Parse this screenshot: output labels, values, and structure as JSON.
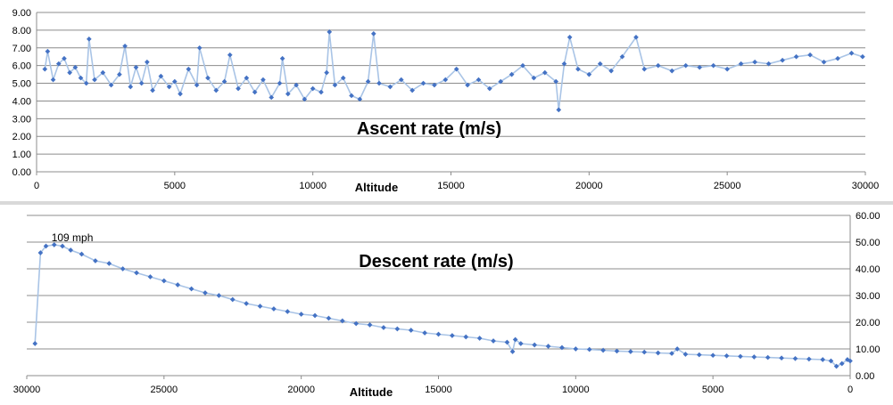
{
  "chart_data": [
    {
      "type": "line",
      "title": "Ascent rate (m/s)",
      "xlabel": "Altitude",
      "ylabel": "",
      "xlim": [
        0,
        30000
      ],
      "ylim": [
        0,
        9
      ],
      "x_ticks": [
        0,
        5000,
        10000,
        15000,
        20000,
        25000,
        30000
      ],
      "y_ticks": [
        "0.00",
        "1.00",
        "2.00",
        "3.00",
        "4.00",
        "5.00",
        "6.00",
        "7.00",
        "8.00",
        "9.00"
      ],
      "y_axis_side": "left",
      "grid": true,
      "series": [
        {
          "name": "Ascent rate",
          "color": "#4472c4",
          "line_color": "#a9c4e6",
          "points": [
            [
              300,
              5.8
            ],
            [
              400,
              6.8
            ],
            [
              600,
              5.2
            ],
            [
              800,
              6.1
            ],
            [
              1000,
              6.4
            ],
            [
              1200,
              5.6
            ],
            [
              1400,
              5.9
            ],
            [
              1600,
              5.3
            ],
            [
              1800,
              5.0
            ],
            [
              1900,
              7.5
            ],
            [
              2100,
              5.2
            ],
            [
              2400,
              5.6
            ],
            [
              2700,
              4.9
            ],
            [
              3000,
              5.5
            ],
            [
              3200,
              7.1
            ],
            [
              3400,
              4.8
            ],
            [
              3600,
              5.9
            ],
            [
              3800,
              5.0
            ],
            [
              4000,
              6.2
            ],
            [
              4200,
              4.6
            ],
            [
              4500,
              5.4
            ],
            [
              4800,
              4.8
            ],
            [
              5000,
              5.1
            ],
            [
              5200,
              4.4
            ],
            [
              5500,
              5.8
            ],
            [
              5800,
              4.9
            ],
            [
              5900,
              7.0
            ],
            [
              6200,
              5.3
            ],
            [
              6500,
              4.6
            ],
            [
              6800,
              5.1
            ],
            [
              7000,
              6.6
            ],
            [
              7300,
              4.7
            ],
            [
              7600,
              5.3
            ],
            [
              7900,
              4.5
            ],
            [
              8200,
              5.2
            ],
            [
              8500,
              4.2
            ],
            [
              8800,
              5.0
            ],
            [
              8900,
              6.4
            ],
            [
              9100,
              4.4
            ],
            [
              9400,
              4.9
            ],
            [
              9700,
              4.1
            ],
            [
              10000,
              4.7
            ],
            [
              10300,
              4.5
            ],
            [
              10500,
              5.6
            ],
            [
              10600,
              7.9
            ],
            [
              10800,
              4.9
            ],
            [
              11100,
              5.3
            ],
            [
              11400,
              4.3
            ],
            [
              11700,
              4.1
            ],
            [
              12000,
              5.1
            ],
            [
              12200,
              7.8
            ],
            [
              12400,
              5.0
            ],
            [
              12800,
              4.8
            ],
            [
              13200,
              5.2
            ],
            [
              13600,
              4.6
            ],
            [
              14000,
              5.0
            ],
            [
              14400,
              4.9
            ],
            [
              14800,
              5.2
            ],
            [
              15200,
              5.8
            ],
            [
              15600,
              4.9
            ],
            [
              16000,
              5.2
            ],
            [
              16400,
              4.7
            ],
            [
              16800,
              5.1
            ],
            [
              17200,
              5.5
            ],
            [
              17600,
              6.0
            ],
            [
              18000,
              5.3
            ],
            [
              18400,
              5.6
            ],
            [
              18800,
              5.1
            ],
            [
              18900,
              3.5
            ],
            [
              19100,
              6.1
            ],
            [
              19300,
              7.6
            ],
            [
              19600,
              5.8
            ],
            [
              20000,
              5.5
            ],
            [
              20400,
              6.1
            ],
            [
              20800,
              5.7
            ],
            [
              21200,
              6.5
            ],
            [
              21700,
              7.6
            ],
            [
              22000,
              5.8
            ],
            [
              22500,
              6.0
            ],
            [
              23000,
              5.7
            ],
            [
              23500,
              6.0
            ],
            [
              24000,
              5.9
            ],
            [
              24500,
              6.0
            ],
            [
              25000,
              5.8
            ],
            [
              25500,
              6.1
            ],
            [
              26000,
              6.2
            ],
            [
              26500,
              6.1
            ],
            [
              27000,
              6.3
            ],
            [
              27500,
              6.5
            ],
            [
              28000,
              6.6
            ],
            [
              28500,
              6.2
            ],
            [
              29000,
              6.4
            ],
            [
              29500,
              6.7
            ],
            [
              29900,
              6.5
            ]
          ]
        }
      ]
    },
    {
      "type": "line",
      "title": "Descent rate (m/s)",
      "xlabel": "Altitude",
      "ylabel": "",
      "xlim": [
        30000,
        0
      ],
      "ylim": [
        0,
        60
      ],
      "x_ticks": [
        30000,
        25000,
        20000,
        15000,
        10000,
        5000,
        0
      ],
      "y_ticks": [
        "0.00",
        "10.00",
        "20.00",
        "30.00",
        "40.00",
        "50.00",
        "60.00"
      ],
      "y_axis_side": "right",
      "grid": true,
      "annotations": [
        {
          "text": "109 mph",
          "x": 29100,
          "y": 49
        }
      ],
      "series": [
        {
          "name": "Descent rate",
          "color": "#4472c4",
          "line_color": "#a9c4e6",
          "points": [
            [
              29700,
              12.0
            ],
            [
              29500,
              46.0
            ],
            [
              29300,
              48.5
            ],
            [
              29000,
              49.0
            ],
            [
              28700,
              48.5
            ],
            [
              28400,
              47.0
            ],
            [
              28000,
              45.5
            ],
            [
              27500,
              43.0
            ],
            [
              27000,
              42.0
            ],
            [
              26500,
              40.0
            ],
            [
              26000,
              38.5
            ],
            [
              25500,
              37.0
            ],
            [
              25000,
              35.5
            ],
            [
              24500,
              34.0
            ],
            [
              24000,
              32.5
            ],
            [
              23500,
              31.0
            ],
            [
              23000,
              30.0
            ],
            [
              22500,
              28.5
            ],
            [
              22000,
              27.0
            ],
            [
              21500,
              26.0
            ],
            [
              21000,
              25.0
            ],
            [
              20500,
              24.0
            ],
            [
              20000,
              23.0
            ],
            [
              19500,
              22.5
            ],
            [
              19000,
              21.5
            ],
            [
              18500,
              20.5
            ],
            [
              18000,
              19.5
            ],
            [
              17500,
              19.0
            ],
            [
              17000,
              18.0
            ],
            [
              16500,
              17.5
            ],
            [
              16000,
              17.0
            ],
            [
              15500,
              16.0
            ],
            [
              15000,
              15.5
            ],
            [
              14500,
              15.0
            ],
            [
              14000,
              14.5
            ],
            [
              13500,
              14.0
            ],
            [
              13000,
              13.0
            ],
            [
              12500,
              12.5
            ],
            [
              12300,
              9.0
            ],
            [
              12200,
              13.5
            ],
            [
              12000,
              12.0
            ],
            [
              11500,
              11.5
            ],
            [
              11000,
              11.0
            ],
            [
              10500,
              10.5
            ],
            [
              10000,
              10.0
            ],
            [
              9500,
              9.8
            ],
            [
              9000,
              9.5
            ],
            [
              8500,
              9.2
            ],
            [
              8000,
              9.0
            ],
            [
              7500,
              8.8
            ],
            [
              7000,
              8.5
            ],
            [
              6500,
              8.3
            ],
            [
              6300,
              10.0
            ],
            [
              6000,
              8.0
            ],
            [
              5500,
              7.8
            ],
            [
              5000,
              7.6
            ],
            [
              4500,
              7.4
            ],
            [
              4000,
              7.2
            ],
            [
              3500,
              7.0
            ],
            [
              3000,
              6.8
            ],
            [
              2500,
              6.6
            ],
            [
              2000,
              6.4
            ],
            [
              1500,
              6.2
            ],
            [
              1000,
              6.0
            ],
            [
              700,
              5.5
            ],
            [
              500,
              3.5
            ],
            [
              300,
              4.5
            ],
            [
              100,
              6.0
            ],
            [
              0,
              5.5
            ]
          ]
        }
      ]
    }
  ]
}
